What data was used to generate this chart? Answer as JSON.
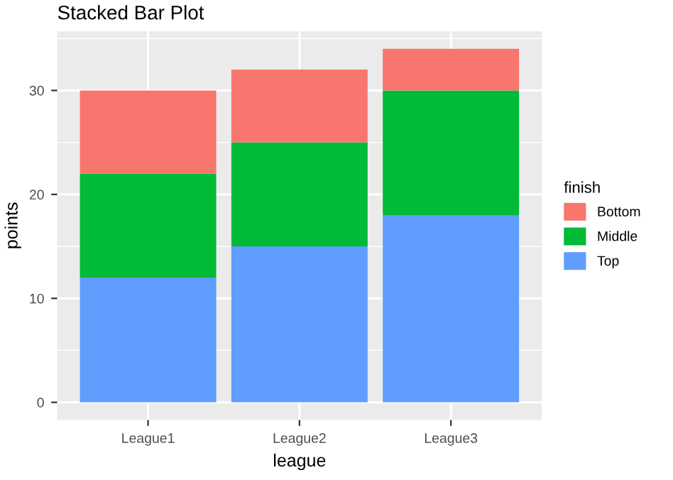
{
  "chart_data": {
    "type": "bar",
    "title": "Stacked Bar Plot",
    "xlabel": "league",
    "ylabel": "points",
    "legend_title": "finish",
    "categories": [
      "League1",
      "League2",
      "League3"
    ],
    "stacked": true,
    "series": [
      {
        "name": "Top",
        "color": "#619cff",
        "values": [
          12,
          15,
          18
        ]
      },
      {
        "name": "Middle",
        "color": "#00ba38",
        "values": [
          10,
          10,
          12
        ]
      },
      {
        "name": "Bottom",
        "color": "#f8766d",
        "values": [
          8,
          7,
          4
        ]
      }
    ],
    "ylim": [
      -1.7,
      35.7
    ],
    "yticks": [
      0,
      10,
      20,
      30
    ],
    "grid": true,
    "legend": "right"
  }
}
